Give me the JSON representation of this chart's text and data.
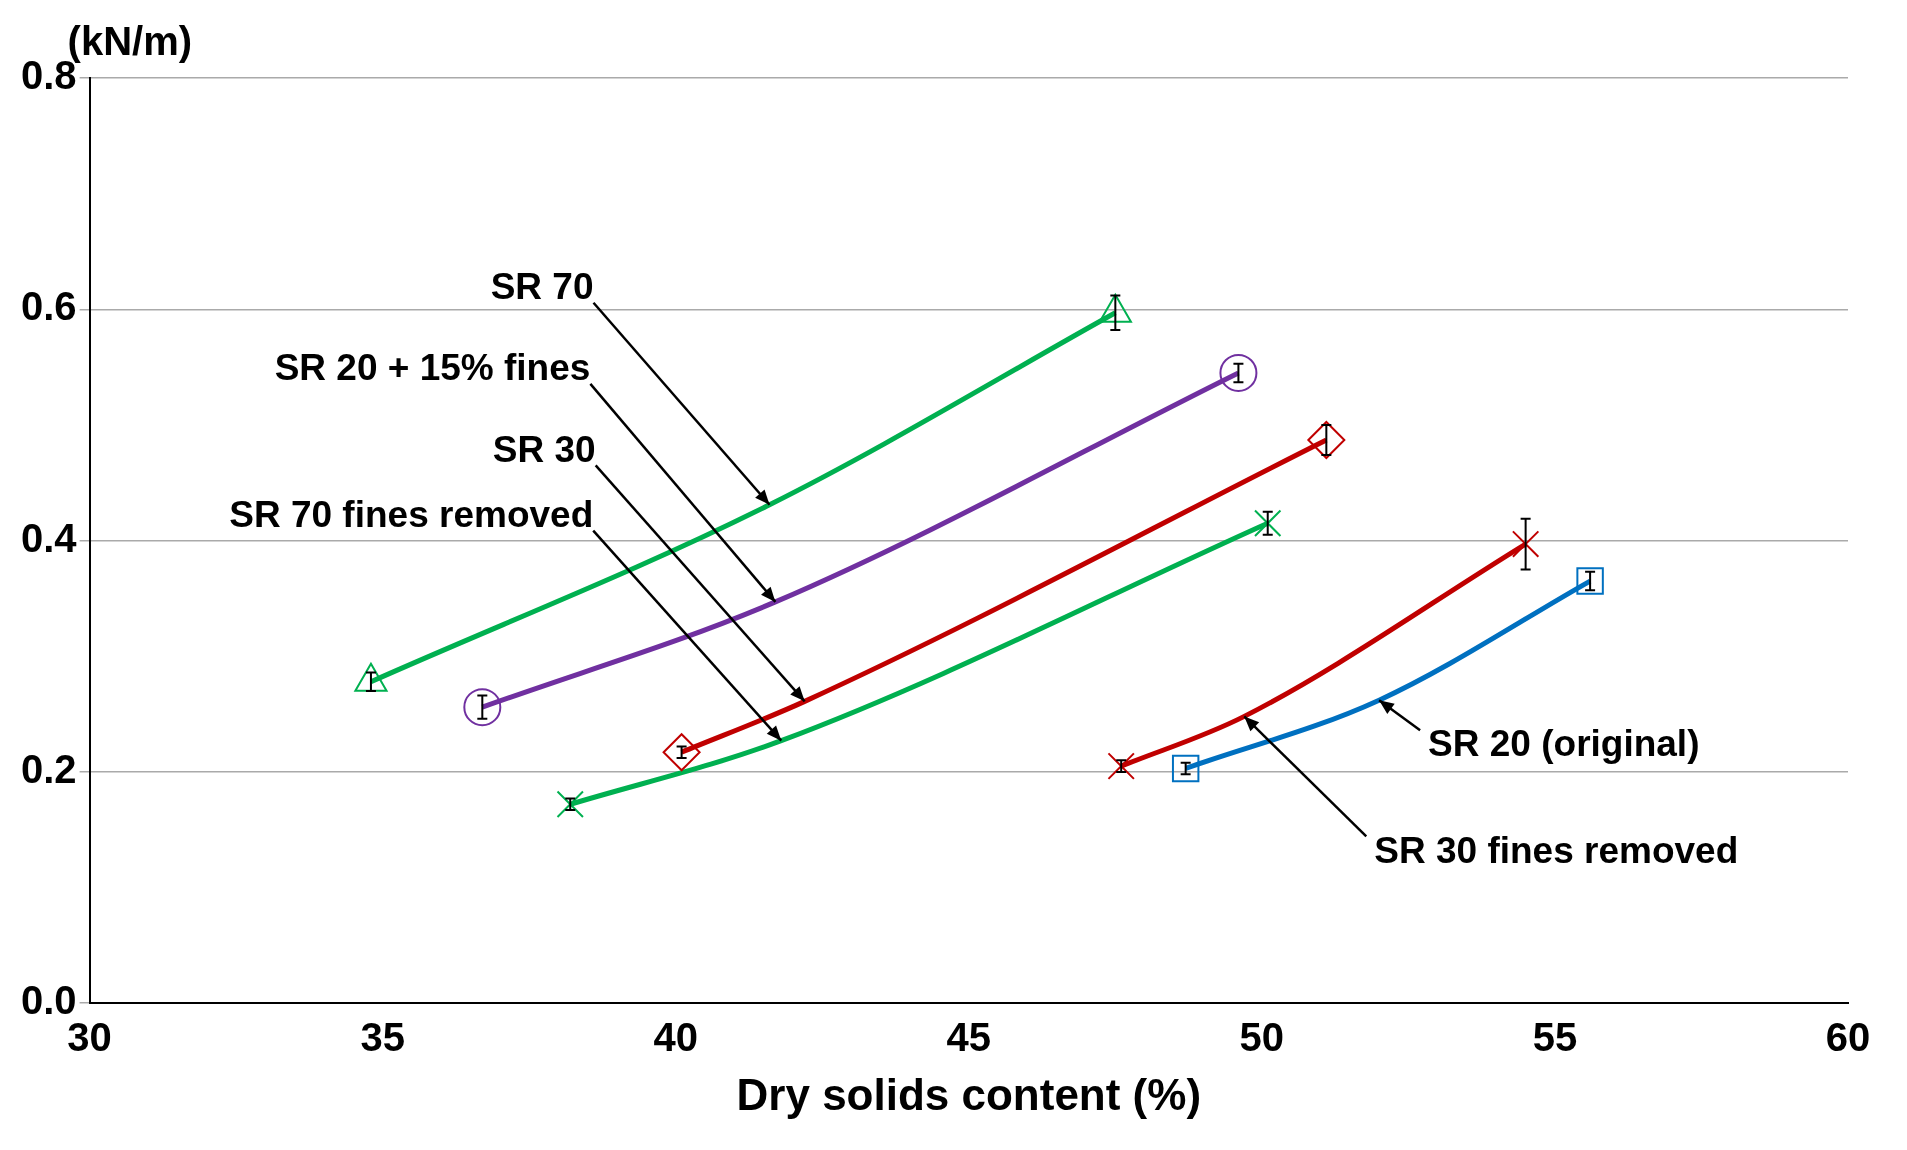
{
  "chart_data": {
    "type": "line",
    "xlabel": "Dry solids content (%)",
    "ylabel": "(kN/m)",
    "xlim": [
      30,
      60
    ],
    "xticks": [
      30,
      35,
      40,
      45,
      50,
      55,
      60
    ],
    "ylim": [
      0,
      0.8
    ],
    "yticks": [
      {
        "value": 0,
        "label": "0.0"
      },
      {
        "value": 0.2,
        "label": "0.2"
      },
      {
        "value": 0.4,
        "label": "0.4"
      },
      {
        "value": 0.6,
        "label": "0.6"
      },
      {
        "value": 0.8,
        "label": "0.8"
      }
    ],
    "grid": "y",
    "legend": false,
    "series": [
      {
        "name": "SR 70",
        "color": "#00b050",
        "marker": "triangle",
        "x": [
          34.8,
          41.6,
          47.5
        ],
        "values": [
          0.278,
          0.431,
          0.597
        ],
        "errors": [
          0.008,
          null,
          0.015
        ]
      },
      {
        "name": "SR 20 + 15% fines",
        "color": "#7030a0",
        "marker": "circle",
        "x": [
          36.7,
          41.7,
          49.6
        ],
        "values": [
          0.256,
          0.347,
          0.545
        ],
        "errors": [
          0.01,
          null,
          0.008
        ]
      },
      {
        "name": "SR 30",
        "color": "#c00000",
        "marker": "diamond",
        "x": [
          40.1,
          42.2,
          51.1
        ],
        "values": [
          0.217,
          0.261,
          0.487
        ],
        "errors": [
          0.005,
          null,
          0.013
        ]
      },
      {
        "name": "SR 70 fines removed",
        "color": "#00b050",
        "marker": "cross",
        "x": [
          38.2,
          41.8,
          50.1
        ],
        "values": [
          0.172,
          0.227,
          0.415
        ],
        "errors": [
          0.005,
          null,
          0.01
        ]
      },
      {
        "name": "SR 30 fines removed",
        "color": "#c00000",
        "marker": "cross",
        "x": [
          47.6,
          49.7,
          54.5
        ],
        "values": [
          0.205,
          0.248,
          0.397
        ],
        "errors": [
          0.005,
          null,
          0.022
        ]
      },
      {
        "name": "SR 20 (original)",
        "color": "#0070c0",
        "marker": "square",
        "x": [
          48.7,
          52.0,
          55.6
        ],
        "values": [
          0.203,
          0.262,
          0.365
        ],
        "errors": [
          0.005,
          null,
          0.008
        ]
      }
    ]
  }
}
